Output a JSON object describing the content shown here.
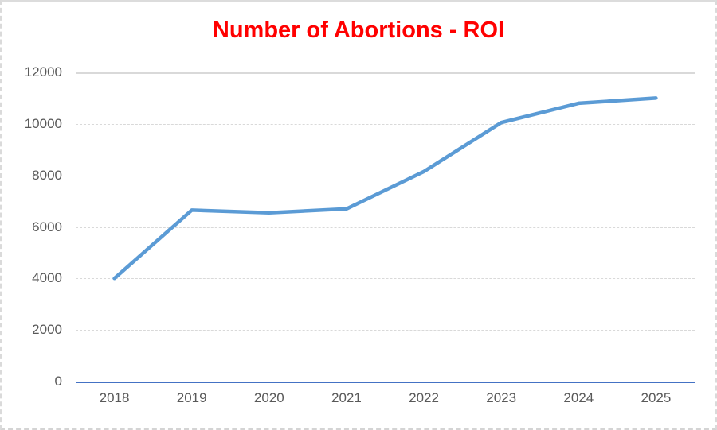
{
  "chart_data": {
    "type": "line",
    "title": "Number of Abortions - ROI",
    "categories": [
      "2018",
      "2019",
      "2020",
      "2021",
      "2022",
      "2023",
      "2024",
      "2025"
    ],
    "series": [
      {
        "name": "Number of Abortions - ROI",
        "values": [
          4000,
          6650,
          6550,
          6700,
          8150,
          10050,
          10800,
          11000
        ]
      }
    ],
    "xlabel": "",
    "ylabel": "",
    "ylim": [
      0,
      12000
    ],
    "yticks": [
      0,
      2000,
      4000,
      6000,
      8000,
      10000,
      12000
    ],
    "grid": "horizontal-only",
    "legend": "none"
  },
  "colors": {
    "title": "#ff0000",
    "line": "#5b9bd5",
    "axis_line": "#4472c4",
    "gridline": "#d9d9d9",
    "tick_label": "#595959",
    "frame": "#dcdcdc",
    "background": "#ffffff"
  }
}
